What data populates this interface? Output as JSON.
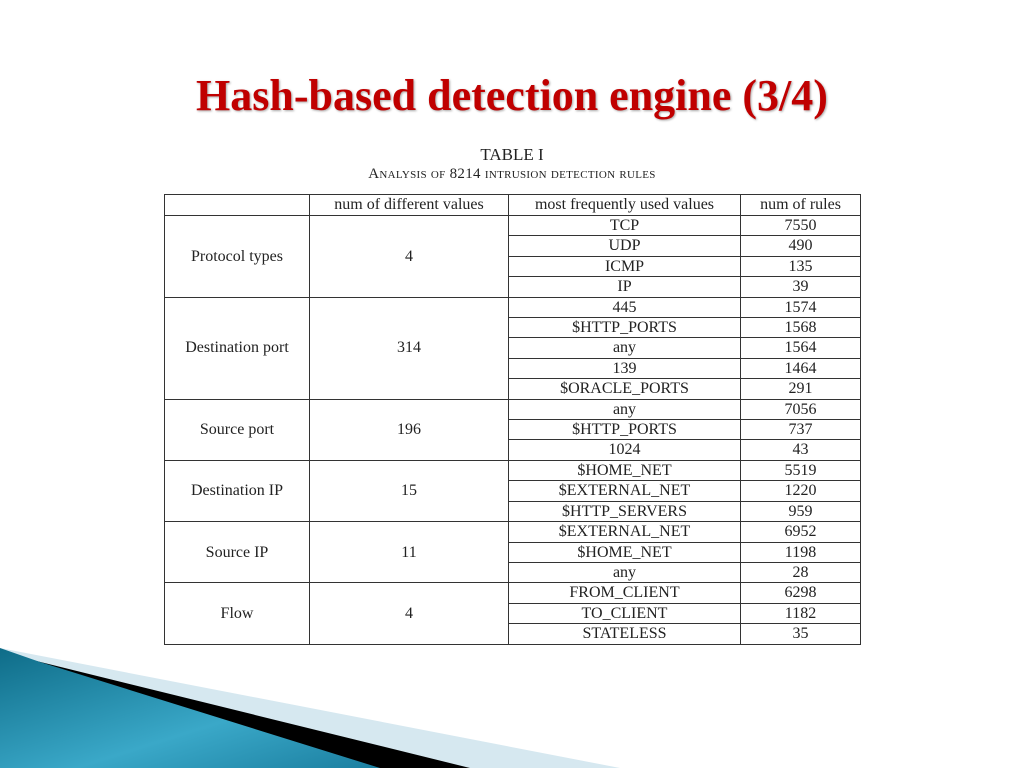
{
  "slide": {
    "title": "Hash-based detection engine (3/4)"
  },
  "table": {
    "caption_number": "TABLE I",
    "caption_title": "Analysis of 8214 intrusion detection rules",
    "headers": [
      "",
      "num of different values",
      "most frequently used values",
      "num of rules"
    ],
    "groups": [
      {
        "field": "Protocol types",
        "distinct": "4",
        "values": [
          [
            "TCP",
            "7550"
          ],
          [
            "UDP",
            "490"
          ],
          [
            "ICMP",
            "135"
          ],
          [
            "IP",
            "39"
          ]
        ]
      },
      {
        "field": "Destination port",
        "distinct": "314",
        "values": [
          [
            "445",
            "1574"
          ],
          [
            "$HTTP_PORTS",
            "1568"
          ],
          [
            "any",
            "1564"
          ],
          [
            "139",
            "1464"
          ],
          [
            "$ORACLE_PORTS",
            "291"
          ]
        ]
      },
      {
        "field": "Source port",
        "distinct": "196",
        "values": [
          [
            "any",
            "7056"
          ],
          [
            "$HTTP_PORTS",
            "737"
          ],
          [
            "1024",
            "43"
          ]
        ]
      },
      {
        "field": "Destination IP",
        "distinct": "15",
        "values": [
          [
            "$HOME_NET",
            "5519"
          ],
          [
            "$EXTERNAL_NET",
            "1220"
          ],
          [
            "$HTTP_SERVERS",
            "959"
          ]
        ]
      },
      {
        "field": "Source IP",
        "distinct": "11",
        "values": [
          [
            "$EXTERNAL_NET",
            "6952"
          ],
          [
            "$HOME_NET",
            "1198"
          ],
          [
            "any",
            "28"
          ]
        ]
      },
      {
        "field": "Flow",
        "distinct": "4",
        "values": [
          [
            "FROM_CLIENT",
            "6298"
          ],
          [
            "TO_CLIENT",
            "1182"
          ],
          [
            "STATELESS",
            "35"
          ]
        ]
      }
    ]
  },
  "colors": {
    "title": "#c00000",
    "deco_blue": "#1f8fb0",
    "deco_light": "#d6e8f0",
    "deco_black": "#000000"
  }
}
